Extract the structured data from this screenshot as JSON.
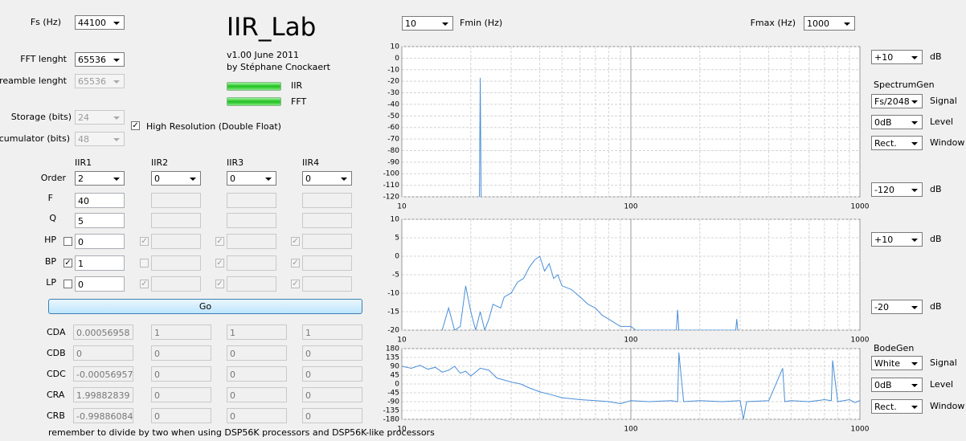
{
  "header": {
    "title": "IIR_Lab",
    "version": "v1.00 June 2011",
    "author": "by Stéphane Cnockaert",
    "iir_label": "IIR",
    "fft_label": "FFT"
  },
  "settings": {
    "fs_label": "Fs (Hz)",
    "fs": "44100",
    "fft_label": "FFT lenght",
    "fft": "65536",
    "preamble_label": "Preamble lenght",
    "preamble": "65536",
    "storage_label": "Storage (bits)",
    "storage": "24",
    "accumulator_label": "Accumulator (bits)",
    "accumulator": "48",
    "high_res_label": "High Resolution (Double Float)",
    "high_res": true
  },
  "filters": {
    "row_labels": {
      "order": "Order",
      "f": "F",
      "q": "Q",
      "hp": "HP",
      "bp": "BP",
      "lp": "LP"
    },
    "columns": [
      {
        "name": "IIR1",
        "order": "2",
        "f": "40",
        "q": "5",
        "hp": "0",
        "bp": "1",
        "lp": "0",
        "hp_on": false,
        "bp_on": true,
        "lp_on": false,
        "enabled": true
      },
      {
        "name": "IIR2",
        "order": "0",
        "hp_on": true,
        "bp_on": false,
        "lp_on": true,
        "enabled": false
      },
      {
        "name": "IIR3",
        "order": "0",
        "hp_on": true,
        "bp_on": true,
        "lp_on": true,
        "enabled": false
      },
      {
        "name": "IIR4",
        "order": "0",
        "hp_on": true,
        "bp_on": true,
        "lp_on": true,
        "enabled": false
      }
    ]
  },
  "go": "Go",
  "coefficients": [
    {
      "label": "CDA",
      "values": [
        "0.00056958",
        "1",
        "1",
        "1"
      ]
    },
    {
      "label": "CDB",
      "values": [
        "0",
        "0",
        "0",
        "0"
      ]
    },
    {
      "label": "CDC",
      "values": [
        "-0.00056957",
        "0",
        "0",
        "0"
      ]
    },
    {
      "label": "CRA",
      "values": [
        "1.99882839",
        "0",
        "0",
        "0"
      ]
    },
    {
      "label": "CRB",
      "values": [
        "-0.99886084",
        "0",
        "0",
        "0"
      ]
    }
  ],
  "note": "remember to divide by two when using DSP56K processors and DSP56K-like processors",
  "freq": {
    "fmin": "10",
    "fmin_label": "Fmin (Hz)",
    "fmax_label": "Fmax (Hz)",
    "fmax": "1000"
  },
  "right": {
    "c1_max": "+10",
    "c1_max_unit": "dB",
    "spectrum_gen": "SpectrumGen",
    "spec_signal": "Fs/2048",
    "spec_signal_label": "Signal",
    "spec_level": "0dB",
    "spec_level_label": "Level",
    "spec_window": "Rect.",
    "spec_window_label": "Window",
    "c1_min": "-120",
    "c1_min_unit": "dB",
    "c2_max": "+10",
    "c2_max_unit": "dB",
    "c2_min": "-20",
    "c2_min_unit": "dB",
    "bode_gen": "BodeGen",
    "bode_signal": "White",
    "bode_signal_label": "Signal",
    "bode_level": "0dB",
    "bode_level_label": "Level",
    "bode_window": "Rect.",
    "bode_window_label": "Window"
  },
  "chart_data": [
    {
      "type": "line",
      "log_x": true,
      "grid": true,
      "xlim": [
        10,
        1000
      ],
      "xticks": [
        10,
        100,
        1000
      ],
      "ylim": [
        -120,
        10
      ],
      "yticks": [
        10,
        0,
        -10,
        -20,
        -30,
        -40,
        -50,
        -60,
        -70,
        -80,
        -90,
        -100,
        -110,
        -120
      ],
      "series": [
        {
          "color": "#4a8fd8",
          "x": [
            21.8,
            22,
            22.2
          ],
          "values": [
            -125,
            -17,
            -125
          ]
        }
      ]
    },
    {
      "type": "line",
      "log_x": true,
      "grid": true,
      "xlim": [
        10,
        1000
      ],
      "xticks": [
        10,
        100,
        1000
      ],
      "ylim": [
        -20,
        10
      ],
      "yticks": [
        10,
        5,
        0,
        -5,
        -10,
        -15,
        -20
      ],
      "series": [
        {
          "color": "#4a8fd8",
          "x": [
            15,
            16,
            17,
            18,
            19,
            20,
            21,
            22,
            23,
            24,
            25,
            27,
            28,
            30,
            32,
            34,
            36,
            38,
            40,
            42,
            44,
            46,
            48,
            50,
            55,
            60,
            65,
            70,
            75,
            80,
            90,
            100,
            105,
            158,
            160,
            162,
            287,
            290,
            293
          ],
          "values": [
            -20,
            -14,
            -20,
            -19,
            -8,
            -15,
            -20,
            -15,
            -20,
            -17,
            -13,
            -14,
            -11,
            -10,
            -7,
            -6,
            -3,
            -1,
            0,
            -4,
            -2,
            -6,
            -5,
            -8,
            -9,
            -11,
            -13,
            -14,
            -16,
            -17,
            -19,
            -19,
            -20,
            -20,
            -14.5,
            -20,
            -20,
            -17,
            -20
          ]
        }
      ]
    },
    {
      "type": "line",
      "log_x": true,
      "grid": true,
      "xlim": [
        10,
        1000
      ],
      "xticks": [
        10,
        100,
        1000
      ],
      "ylim": [
        -180,
        180
      ],
      "yticks": [
        180,
        135,
        90,
        45,
        0,
        -45,
        -90,
        -135,
        -180
      ],
      "series": [
        {
          "color": "#4a8fd8",
          "x": [
            10,
            11,
            12,
            13,
            14,
            15,
            16,
            17,
            18,
            19,
            20,
            22,
            24,
            26,
            28,
            30,
            33,
            36,
            40,
            45,
            50,
            60,
            70,
            80,
            90,
            100,
            120,
            150,
            160,
            162,
            170,
            200,
            250,
            300,
            310,
            320,
            400,
            460,
            470,
            500,
            600,
            700,
            750,
            760,
            800,
            900,
            950,
            1000
          ],
          "values": [
            90,
            80,
            95,
            75,
            85,
            60,
            70,
            90,
            55,
            65,
            40,
            80,
            70,
            30,
            20,
            10,
            0,
            -20,
            -40,
            -55,
            -70,
            -80,
            -85,
            -90,
            -100,
            -85,
            -90,
            -85,
            -90,
            160,
            -90,
            -85,
            -90,
            -85,
            -180,
            -90,
            -85,
            80,
            -90,
            -85,
            -90,
            -80,
            -85,
            120,
            -90,
            -80,
            -95,
            -85
          ]
        }
      ]
    }
  ]
}
